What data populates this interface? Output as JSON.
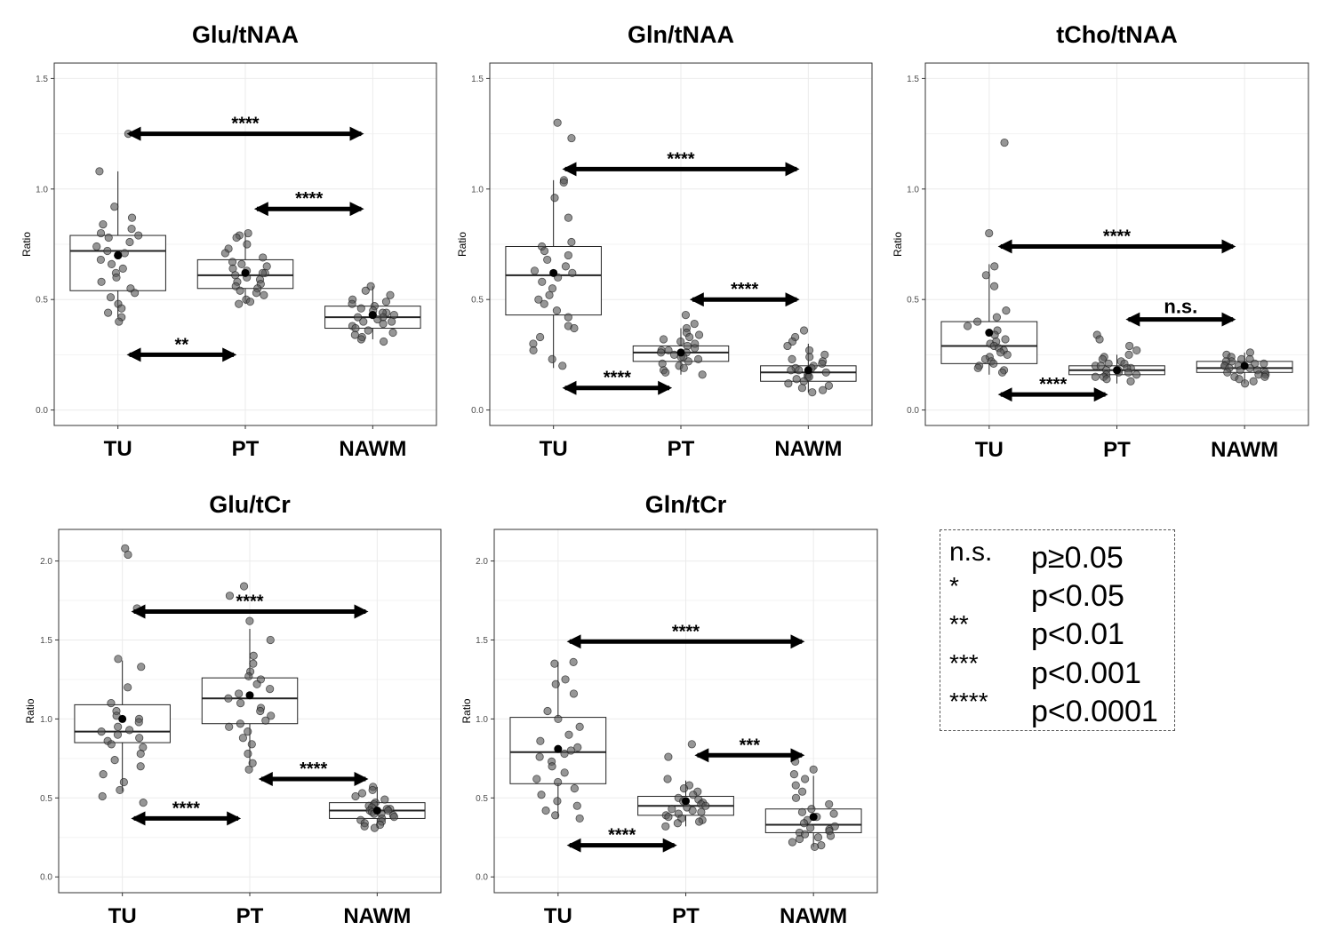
{
  "colors": {
    "point_fill": "#555555",
    "point_stroke": "#1a1a1a",
    "box_line": "#222222",
    "grid": "#ebebeb",
    "arrow": "#000000"
  },
  "chart_data": [
    {
      "type": "box",
      "title": "Glu/tNAA",
      "xlabel": "",
      "ylabel": "Ratio",
      "ylim": [
        -0.07,
        1.57
      ],
      "yticks": [
        0.0,
        0.5,
        1.0,
        1.5
      ],
      "ytick_labels": [
        "0.0",
        "0.5",
        "1.0",
        "1.5"
      ],
      "categories": [
        "TU",
        "PT",
        "NAWM"
      ],
      "boxes": [
        {
          "q1": 0.54,
          "median": 0.72,
          "q3": 0.79,
          "whisker_low": 0.42,
          "whisker_high": 1.08,
          "mean": 0.7
        },
        {
          "q1": 0.55,
          "median": 0.61,
          "q3": 0.68,
          "whisker_low": 0.48,
          "whisker_high": 0.8,
          "mean": 0.62
        },
        {
          "q1": 0.37,
          "median": 0.42,
          "q3": 0.47,
          "whisker_low": 0.32,
          "whisker_high": 0.56,
          "mean": 0.43
        }
      ],
      "points": [
        [
          1.25,
          1.08,
          0.92,
          0.87,
          0.84,
          0.82,
          0.8,
          0.79,
          0.78,
          0.76,
          0.74,
          0.72,
          0.71,
          0.7,
          0.68,
          0.66,
          0.64,
          0.62,
          0.6,
          0.58,
          0.55,
          0.53,
          0.51,
          0.48,
          0.46,
          0.44,
          0.42,
          0.4
        ],
        [
          0.8,
          0.79,
          0.78,
          0.75,
          0.73,
          0.71,
          0.69,
          0.67,
          0.66,
          0.65,
          0.64,
          0.63,
          0.62,
          0.62,
          0.61,
          0.6,
          0.59,
          0.58,
          0.57,
          0.56,
          0.55,
          0.54,
          0.53,
          0.52,
          0.5,
          0.49,
          0.48
        ],
        [
          0.56,
          0.54,
          0.52,
          0.5,
          0.49,
          0.48,
          0.47,
          0.46,
          0.45,
          0.44,
          0.44,
          0.43,
          0.43,
          0.42,
          0.42,
          0.41,
          0.4,
          0.4,
          0.39,
          0.38,
          0.37,
          0.36,
          0.35,
          0.34,
          0.33,
          0.32,
          0.31
        ]
      ],
      "comparisons": [
        {
          "from": 0,
          "to": 2,
          "y": 1.25,
          "label": "****"
        },
        {
          "from": 1,
          "to": 2,
          "y": 0.91,
          "label": "****"
        },
        {
          "from": 0,
          "to": 1,
          "y": 0.25,
          "label": "**"
        }
      ]
    },
    {
      "type": "box",
      "title": "Gln/tNAA",
      "xlabel": "",
      "ylabel": "Ratio",
      "ylim": [
        -0.07,
        1.57
      ],
      "yticks": [
        0.0,
        0.5,
        1.0,
        1.5
      ],
      "ytick_labels": [
        "0.0",
        "0.5",
        "1.0",
        "1.5"
      ],
      "categories": [
        "TU",
        "PT",
        "NAWM"
      ],
      "boxes": [
        {
          "q1": 0.43,
          "median": 0.61,
          "q3": 0.74,
          "whisker_low": 0.19,
          "whisker_high": 1.04,
          "mean": 0.62
        },
        {
          "q1": 0.22,
          "median": 0.26,
          "q3": 0.29,
          "whisker_low": 0.16,
          "whisker_high": 0.37,
          "mean": 0.26
        },
        {
          "q1": 0.13,
          "median": 0.17,
          "q3": 0.2,
          "whisker_low": 0.08,
          "whisker_high": 0.3,
          "mean": 0.18
        }
      ],
      "points": [
        [
          1.3,
          1.23,
          1.04,
          1.03,
          0.96,
          0.87,
          0.76,
          0.74,
          0.72,
          0.7,
          0.68,
          0.65,
          0.63,
          0.62,
          0.6,
          0.58,
          0.55,
          0.52,
          0.5,
          0.48,
          0.45,
          0.42,
          0.38,
          0.37,
          0.33,
          0.3,
          0.27,
          0.23,
          0.2
        ],
        [
          0.43,
          0.39,
          0.37,
          0.35,
          0.34,
          0.33,
          0.32,
          0.31,
          0.3,
          0.29,
          0.28,
          0.27,
          0.27,
          0.26,
          0.26,
          0.25,
          0.24,
          0.24,
          0.23,
          0.22,
          0.21,
          0.2,
          0.19,
          0.18,
          0.17,
          0.16
        ],
        [
          0.36,
          0.33,
          0.31,
          0.29,
          0.27,
          0.25,
          0.24,
          0.23,
          0.22,
          0.21,
          0.2,
          0.19,
          0.19,
          0.18,
          0.18,
          0.17,
          0.16,
          0.15,
          0.15,
          0.14,
          0.13,
          0.12,
          0.11,
          0.1,
          0.09,
          0.08
        ]
      ],
      "comparisons": [
        {
          "from": 0,
          "to": 2,
          "y": 1.09,
          "label": "****"
        },
        {
          "from": 1,
          "to": 2,
          "y": 0.5,
          "label": "****"
        },
        {
          "from": 0,
          "to": 1,
          "y": 0.1,
          "label": "****"
        }
      ]
    },
    {
      "type": "box",
      "title": "tCho/tNAA",
      "xlabel": "",
      "ylabel": "Ratio",
      "ylim": [
        -0.07,
        1.57
      ],
      "yticks": [
        0.0,
        0.5,
        1.0,
        1.5
      ],
      "ytick_labels": [
        "0.0",
        "0.5",
        "1.0",
        "1.5"
      ],
      "categories": [
        "TU",
        "PT",
        "NAWM"
      ],
      "boxes": [
        {
          "q1": 0.21,
          "median": 0.29,
          "q3": 0.4,
          "whisker_low": 0.16,
          "whisker_high": 0.66,
          "mean": 0.35
        },
        {
          "q1": 0.16,
          "median": 0.18,
          "q3": 0.2,
          "whisker_low": 0.12,
          "whisker_high": 0.25,
          "mean": 0.18
        },
        {
          "q1": 0.17,
          "median": 0.19,
          "q3": 0.22,
          "whisker_low": 0.12,
          "whisker_high": 0.26,
          "mean": 0.2
        }
      ],
      "points": [
        [
          1.21,
          0.8,
          0.65,
          0.61,
          0.56,
          0.45,
          0.42,
          0.4,
          0.38,
          0.36,
          0.34,
          0.32,
          0.31,
          0.3,
          0.29,
          0.28,
          0.27,
          0.26,
          0.25,
          0.24,
          0.23,
          0.22,
          0.21,
          0.2,
          0.19,
          0.18,
          0.17
        ],
        [
          0.34,
          0.32,
          0.29,
          0.27,
          0.25,
          0.24,
          0.23,
          0.22,
          0.21,
          0.21,
          0.2,
          0.2,
          0.19,
          0.19,
          0.18,
          0.18,
          0.17,
          0.17,
          0.16,
          0.16,
          0.15,
          0.15,
          0.14,
          0.13
        ],
        [
          0.26,
          0.25,
          0.24,
          0.23,
          0.23,
          0.22,
          0.22,
          0.21,
          0.21,
          0.2,
          0.2,
          0.2,
          0.19,
          0.19,
          0.18,
          0.18,
          0.17,
          0.17,
          0.16,
          0.16,
          0.15,
          0.15,
          0.14,
          0.13,
          0.12
        ]
      ],
      "comparisons": [
        {
          "from": 0,
          "to": 2,
          "y": 0.74,
          "label": "****"
        },
        {
          "from": 1,
          "to": 2,
          "y": 0.41,
          "label": "n.s."
        },
        {
          "from": 0,
          "to": 1,
          "y": 0.07,
          "label": "****"
        }
      ]
    },
    {
      "type": "box",
      "title": "Glu/tCr",
      "xlabel": "",
      "ylabel": "Ratio",
      "ylim": [
        -0.1,
        2.2
      ],
      "yticks": [
        0.0,
        0.5,
        1.0,
        1.5,
        2.0
      ],
      "ytick_labels": [
        "0.0",
        "0.5",
        "1.0",
        "1.5",
        "2.0"
      ],
      "categories": [
        "TU",
        "PT",
        "NAWM"
      ],
      "boxes": [
        {
          "q1": 0.85,
          "median": 0.92,
          "q3": 1.09,
          "whisker_low": 0.54,
          "whisker_high": 1.37,
          "mean": 1.0
        },
        {
          "q1": 0.97,
          "median": 1.13,
          "q3": 1.26,
          "whisker_low": 0.71,
          "whisker_high": 1.57,
          "mean": 1.15
        },
        {
          "q1": 0.37,
          "median": 0.42,
          "q3": 0.47,
          "whisker_low": 0.31,
          "whisker_high": 0.57,
          "mean": 0.42
        }
      ],
      "points": [
        [
          2.08,
          2.04,
          1.7,
          1.38,
          1.33,
          1.2,
          1.1,
          1.05,
          1.02,
          1.0,
          0.98,
          0.95,
          0.93,
          0.92,
          0.9,
          0.88,
          0.86,
          0.84,
          0.82,
          0.78,
          0.74,
          0.7,
          0.65,
          0.6,
          0.55,
          0.51,
          0.47
        ],
        [
          1.84,
          1.78,
          1.62,
          1.5,
          1.4,
          1.35,
          1.3,
          1.27,
          1.25,
          1.22,
          1.19,
          1.16,
          1.13,
          1.1,
          1.07,
          1.05,
          1.02,
          0.99,
          0.97,
          0.95,
          0.92,
          0.88,
          0.84,
          0.78,
          0.72,
          0.68
        ],
        [
          0.57,
          0.55,
          0.53,
          0.51,
          0.49,
          0.47,
          0.46,
          0.45,
          0.44,
          0.43,
          0.43,
          0.42,
          0.42,
          0.41,
          0.4,
          0.4,
          0.39,
          0.38,
          0.37,
          0.36,
          0.35,
          0.34,
          0.33,
          0.32,
          0.31
        ]
      ],
      "comparisons": [
        {
          "from": 0,
          "to": 2,
          "y": 1.68,
          "label": "****"
        },
        {
          "from": 1,
          "to": 2,
          "y": 0.62,
          "label": "****"
        },
        {
          "from": 0,
          "to": 1,
          "y": 0.37,
          "label": "****"
        }
      ]
    },
    {
      "type": "box",
      "title": "Gln/tCr",
      "xlabel": "",
      "ylabel": "Ratio",
      "ylim": [
        -0.1,
        2.2
      ],
      "yticks": [
        0.0,
        0.5,
        1.0,
        1.5,
        2.0
      ],
      "ytick_labels": [
        "0.0",
        "0.5",
        "1.0",
        "1.5",
        "2.0"
      ],
      "categories": [
        "TU",
        "PT",
        "NAWM"
      ],
      "boxes": [
        {
          "q1": 0.59,
          "median": 0.79,
          "q3": 1.01,
          "whisker_low": 0.37,
          "whisker_high": 1.36,
          "mean": 0.81
        },
        {
          "q1": 0.39,
          "median": 0.45,
          "q3": 0.51,
          "whisker_low": 0.32,
          "whisker_high": 0.61,
          "mean": 0.48
        },
        {
          "q1": 0.28,
          "median": 0.33,
          "q3": 0.43,
          "whisker_low": 0.19,
          "whisker_high": 0.64,
          "mean": 0.38
        }
      ],
      "points": [
        [
          1.36,
          1.35,
          1.25,
          1.22,
          1.16,
          1.05,
          1.0,
          0.95,
          0.9,
          0.86,
          0.82,
          0.8,
          0.78,
          0.76,
          0.73,
          0.7,
          0.66,
          0.62,
          0.6,
          0.56,
          0.52,
          0.48,
          0.45,
          0.42,
          0.39,
          0.37
        ],
        [
          0.84,
          0.76,
          0.62,
          0.58,
          0.56,
          0.54,
          0.52,
          0.5,
          0.49,
          0.48,
          0.47,
          0.46,
          0.45,
          0.44,
          0.43,
          0.42,
          0.41,
          0.4,
          0.39,
          0.38,
          0.37,
          0.36,
          0.35,
          0.34,
          0.32
        ],
        [
          0.73,
          0.68,
          0.65,
          0.62,
          0.58,
          0.54,
          0.5,
          0.46,
          0.43,
          0.41,
          0.4,
          0.38,
          0.36,
          0.34,
          0.32,
          0.31,
          0.3,
          0.29,
          0.28,
          0.27,
          0.26,
          0.25,
          0.24,
          0.22,
          0.2,
          0.19
        ]
      ],
      "comparisons": [
        {
          "from": 0,
          "to": 2,
          "y": 1.49,
          "label": "****"
        },
        {
          "from": 1,
          "to": 2,
          "y": 0.77,
          "label": "***"
        },
        {
          "from": 0,
          "to": 1,
          "y": 0.2,
          "label": "****"
        }
      ]
    }
  ],
  "legend": {
    "rows": [
      {
        "symbol": "n.s.",
        "p": "p≥0.05"
      },
      {
        "symbol": "*",
        "p": "p<0.05"
      },
      {
        "symbol": "**",
        "p": "p<0.01"
      },
      {
        "symbol": "***",
        "p": "p<0.001"
      },
      {
        "symbol": "****",
        "p": "p<0.0001"
      }
    ]
  }
}
